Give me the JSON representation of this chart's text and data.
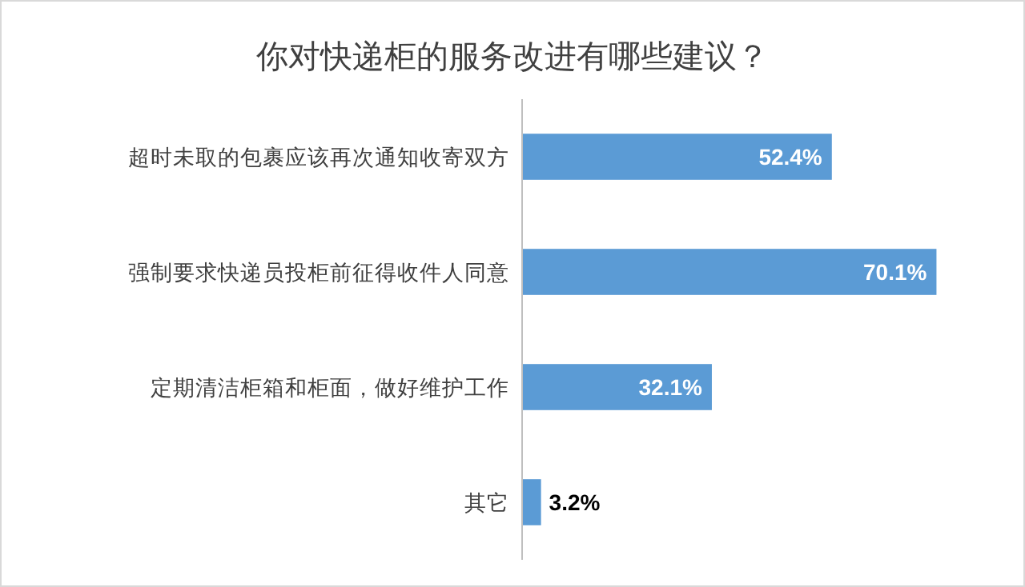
{
  "chart_data": {
    "type": "bar",
    "orientation": "horizontal",
    "title": "你对快递柜的服务改进有哪些建议？",
    "categories": [
      "超时未取的包裹应该再次通知收寄双方",
      "强制要求快递员投柜前征得收件人同意",
      "定期清洁柜箱和柜面，做好维护工作",
      "其它"
    ],
    "values": [
      52.4,
      70.1,
      32.1,
      3.2
    ],
    "value_labels": [
      "52.4%",
      "70.1%",
      "32.1%",
      "3.2%"
    ],
    "color": "#5b9bd5"
  }
}
